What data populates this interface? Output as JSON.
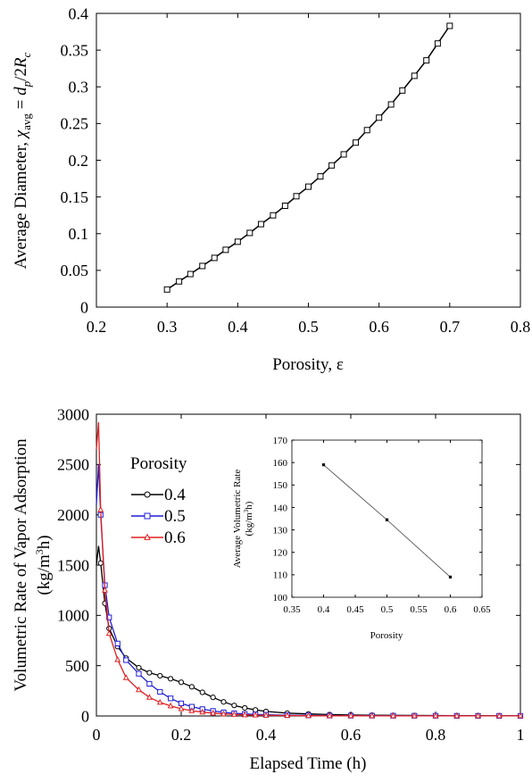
{
  "chart_data": [
    {
      "type": "line",
      "xlabel": "Porosity, ε",
      "ylabel_text": "Average Diameter, ",
      "ylabel_math": {
        "chi": "χ",
        "chi_sub": "avg",
        "eq": " = ",
        "d": "d",
        "d_sub": "p",
        "slash": "/2",
        "R": "R",
        "R_sub": "c"
      },
      "xlim": [
        0.2,
        0.8
      ],
      "ylim": [
        0,
        0.4
      ],
      "xticks": [
        "0.2",
        "0.3",
        "0.4",
        "0.5",
        "0.6",
        "0.7",
        "0.8"
      ],
      "yticks": [
        "0",
        "0.05",
        "0.1",
        "0.15",
        "0.2",
        "0.25",
        "0.3",
        "0.35",
        "0.4"
      ],
      "grid": false,
      "marker": "open-square",
      "x": [
        0.3,
        0.317,
        0.333,
        0.35,
        0.367,
        0.383,
        0.4,
        0.417,
        0.433,
        0.45,
        0.467,
        0.483,
        0.5,
        0.517,
        0.533,
        0.55,
        0.567,
        0.583,
        0.6,
        0.617,
        0.633,
        0.65,
        0.667,
        0.683,
        0.7
      ],
      "y": [
        0.024,
        0.035,
        0.045,
        0.056,
        0.067,
        0.078,
        0.089,
        0.101,
        0.113,
        0.125,
        0.138,
        0.151,
        0.164,
        0.178,
        0.193,
        0.208,
        0.224,
        0.241,
        0.258,
        0.276,
        0.295,
        0.315,
        0.336,
        0.359,
        0.383
      ]
    },
    {
      "type": "line",
      "xlabel": "Elapsed Time (h)",
      "ylabel_line1": "Volumetric Rate of Vapor Adsorption",
      "ylabel_line2_a": "(kg/m",
      "ylabel_line2_sup": "3",
      "ylabel_line2_b": "h)",
      "xlim": [
        0,
        1
      ],
      "ylim": [
        0,
        3000
      ],
      "xticks": [
        "0",
        "0.2",
        "0.4",
        "0.6",
        "0.8",
        "1"
      ],
      "yticks": [
        "0",
        "500",
        "1000",
        "1500",
        "2000",
        "2500",
        "3000"
      ],
      "grid": false,
      "legend_title": "Porosity",
      "legend_position": "upper-left",
      "series": [
        {
          "name": "0.4",
          "color": "#000000",
          "marker": "open-circle",
          "x": [
            0,
            0.005,
            0.01,
            0.02,
            0.03,
            0.05,
            0.07,
            0.1,
            0.125,
            0.15,
            0.175,
            0.2,
            0.225,
            0.25,
            0.275,
            0.3,
            0.325,
            0.35,
            0.375,
            0.4,
            0.45,
            0.5,
            0.55,
            0.6,
            0.65,
            0.7,
            0.75,
            0.8,
            0.85,
            0.9,
            0.95,
            1.0
          ],
          "y": [
            1500,
            1690,
            1520,
            1120,
            870,
            690,
            575,
            480,
            430,
            400,
            370,
            335,
            290,
            235,
            185,
            140,
            105,
            80,
            60,
            45,
            28,
            20,
            14,
            10,
            8,
            6,
            5,
            4,
            3,
            3,
            2,
            2
          ]
        },
        {
          "name": "0.5",
          "color": "#1f1fd6",
          "marker": "open-square",
          "x": [
            0,
            0.005,
            0.01,
            0.02,
            0.03,
            0.05,
            0.07,
            0.1,
            0.125,
            0.15,
            0.175,
            0.2,
            0.225,
            0.25,
            0.275,
            0.3,
            0.325,
            0.35,
            0.375,
            0.4,
            0.45,
            0.5,
            0.55,
            0.6,
            0.65,
            0.7,
            0.75,
            0.8,
            0.85,
            0.9,
            0.95,
            1.0
          ],
          "y": [
            2100,
            2500,
            2000,
            1300,
            980,
            720,
            555,
            420,
            320,
            240,
            175,
            125,
            92,
            68,
            50,
            36,
            27,
            20,
            15,
            12,
            8,
            6,
            4,
            3,
            3,
            2,
            2,
            2,
            1,
            1,
            1,
            1
          ]
        },
        {
          "name": "0.6",
          "color": "#e02020",
          "marker": "open-triangle",
          "x": [
            0,
            0.005,
            0.01,
            0.02,
            0.03,
            0.05,
            0.07,
            0.1,
            0.125,
            0.15,
            0.175,
            0.2,
            0.225,
            0.25,
            0.275,
            0.3,
            0.325,
            0.35,
            0.375,
            0.4,
            0.45,
            0.5,
            0.55,
            0.6,
            0.65,
            0.7,
            0.75,
            0.8,
            0.85,
            0.9,
            0.95,
            1.0
          ],
          "y": [
            2650,
            2920,
            2050,
            1250,
            820,
            560,
            380,
            260,
            185,
            135,
            100,
            72,
            52,
            38,
            28,
            20,
            15,
            11,
            8,
            6,
            4,
            3,
            2,
            2,
            1,
            1,
            1,
            1,
            1,
            1,
            1,
            1
          ]
        }
      ],
      "inset": {
        "type": "line",
        "xlabel": "Porosity",
        "ylabel_line1": "Average Volumetric Rate",
        "ylabel_line2_a": "(kg/m",
        "ylabel_line2_sup": "3",
        "ylabel_line2_b": "h)",
        "xlim": [
          0.35,
          0.65
        ],
        "ylim": [
          100,
          170
        ],
        "xticks": [
          "0.35",
          "0.4",
          "0.45",
          "0.5",
          "0.55",
          "0.6",
          "0.65"
        ],
        "yticks": [
          "100",
          "110",
          "120",
          "130",
          "140",
          "150",
          "160",
          "170"
        ],
        "x": [
          0.4,
          0.5,
          0.6
        ],
        "y": [
          159,
          134.5,
          109
        ]
      }
    }
  ]
}
